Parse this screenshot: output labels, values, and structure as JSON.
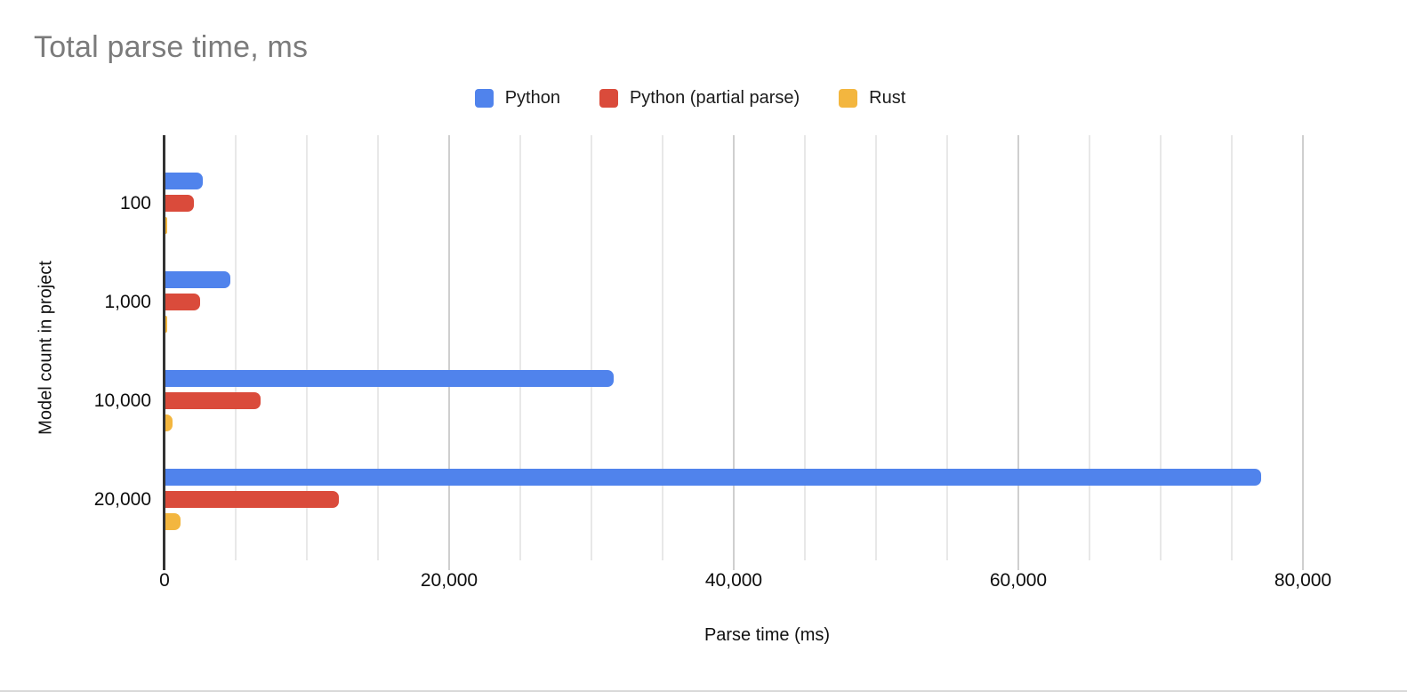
{
  "chart_data": {
    "type": "bar",
    "orientation": "horizontal",
    "title": "Total parse time, ms",
    "xlabel": "Parse time (ms)",
    "ylabel": "Model count in project",
    "categories": [
      "100",
      "1,000",
      "10,000",
      "20,000"
    ],
    "series": [
      {
        "name": "Python",
        "color": "#5083EC",
        "values": [
          2600,
          4550,
          31500,
          77000
        ]
      },
      {
        "name": "Python (partial parse)",
        "color": "#DA4B3B",
        "values": [
          1980,
          2450,
          6700,
          12200
        ]
      },
      {
        "name": "Rust",
        "color": "#F3B63F",
        "values": [
          80,
          130,
          520,
          1040
        ]
      }
    ],
    "xlim": [
      0,
      80000
    ],
    "x_major_ticks": [
      0,
      20000,
      40000,
      60000,
      80000
    ],
    "x_tick_labels": [
      "0",
      "20,000",
      "40,000",
      "60,000",
      "80,000"
    ],
    "x_minor_step": 5000,
    "grid": "vertical",
    "legend_position": "top",
    "colors": {
      "title_color": "#7B7B7B",
      "axis_line_color": "#333333",
      "major_grid_color": "#CFCFCF",
      "minor_grid_color": "#E8E8E8",
      "background": "#FFFFFF"
    }
  }
}
